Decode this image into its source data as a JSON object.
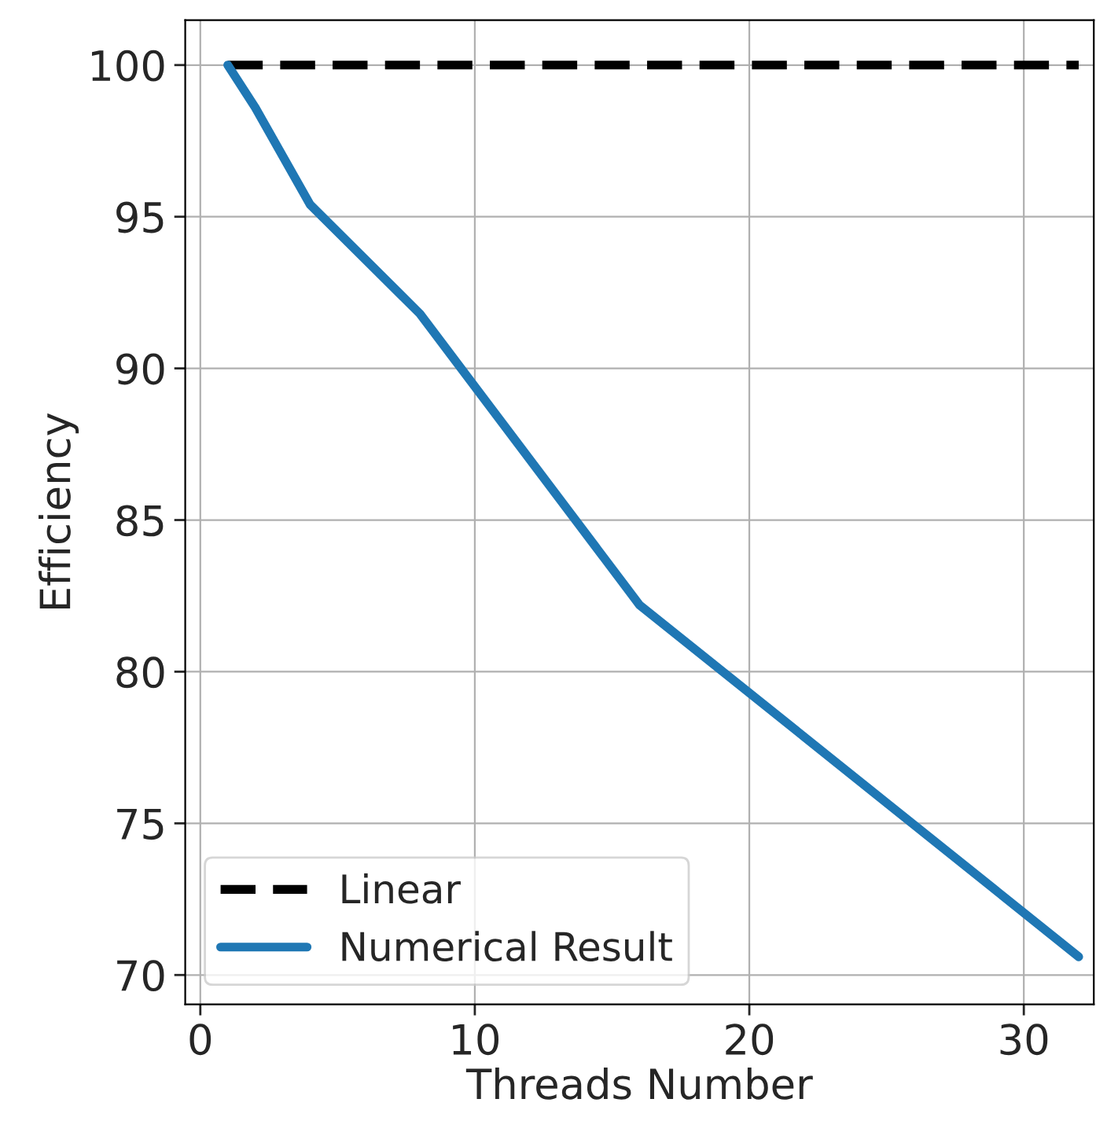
{
  "chart_data": {
    "type": "line",
    "xlabel": "Threads Number",
    "ylabel": "Efficiency",
    "x": [
      1,
      2,
      4,
      8,
      16,
      32
    ],
    "series": [
      {
        "name": "Linear",
        "color": "#000000",
        "line_style": "dashed",
        "values": [
          100,
          100,
          100,
          100,
          100,
          100
        ]
      },
      {
        "name": "Numerical Result",
        "color": "#1f77b4",
        "line_style": "solid",
        "values": [
          100,
          98.6,
          95.4,
          91.8,
          82.2,
          70.6
        ]
      }
    ],
    "xlim": [
      -0.55,
      32.55
    ],
    "ylim": [
      69.03,
      101.48
    ],
    "xticks": [
      0,
      10,
      20,
      30
    ],
    "yticks": [
      70,
      75,
      80,
      85,
      90,
      95,
      100
    ],
    "grid": true,
    "legend": "bottom left",
    "marker": "none"
  }
}
